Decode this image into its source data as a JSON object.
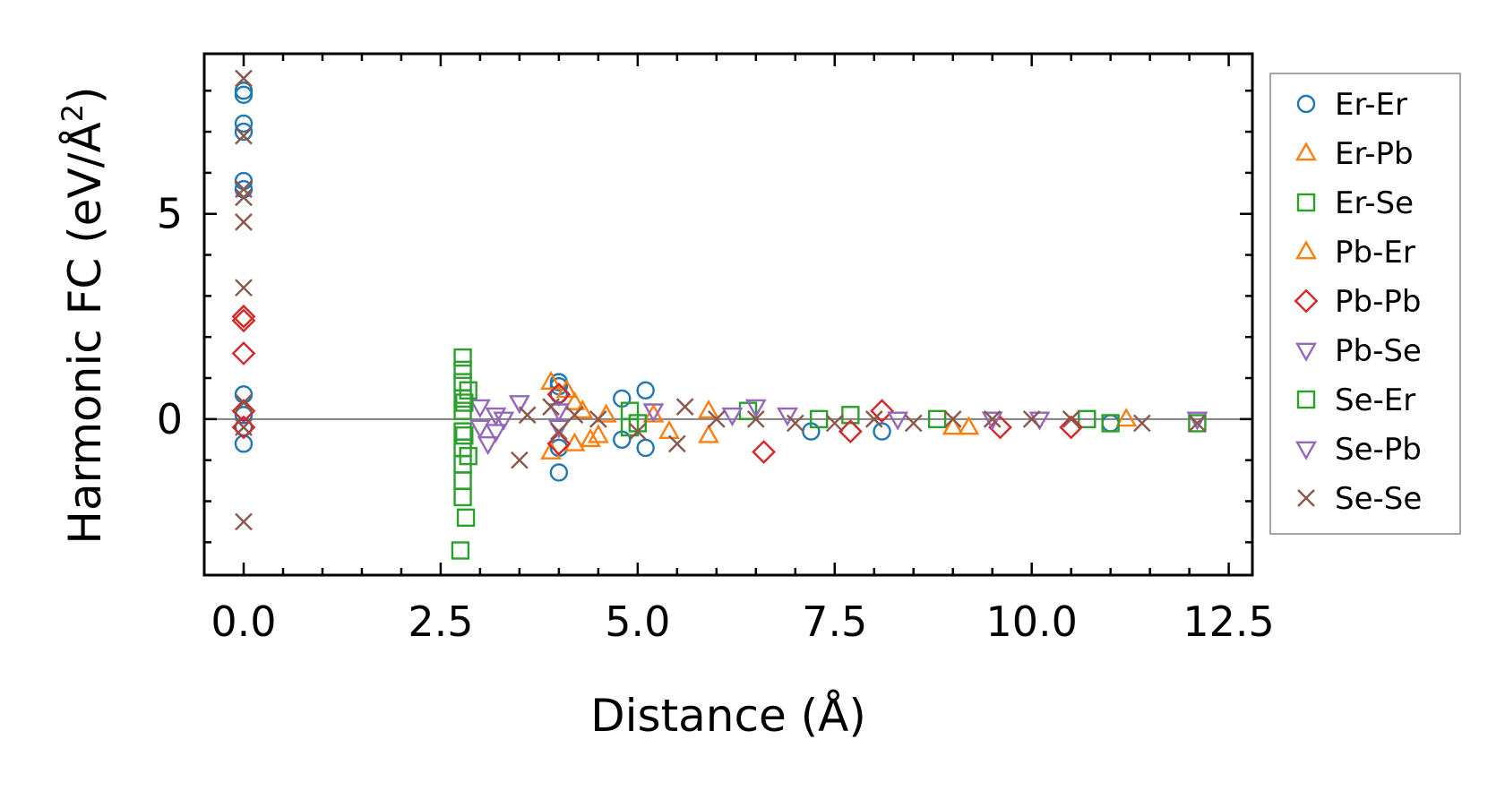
{
  "chart_data": {
    "type": "scatter",
    "xlabel": "Distance (Å)",
    "ylabel_main": "Harmonic FC (eV/Å",
    "ylabel_sup": "2",
    "ylabel_close": ")",
    "xlim": [
      -0.5,
      12.8
    ],
    "ylim": [
      -3.8,
      8.9
    ],
    "xticks": [
      0.0,
      2.5,
      5.0,
      7.5,
      10.0,
      12.5
    ],
    "xtick_labels": [
      "0.0",
      "2.5",
      "5.0",
      "7.5",
      "10.0",
      "12.5"
    ],
    "yticks": [
      0,
      5
    ],
    "ytick_labels": [
      "0",
      "5"
    ],
    "zero_line": true,
    "grid": false,
    "legend_position": "outside-right",
    "series": [
      {
        "name": "Er-Er",
        "marker": "circle",
        "color": "#1f77b4",
        "points": [
          [
            0,
            8.0
          ],
          [
            0,
            7.9
          ],
          [
            0,
            7.2
          ],
          [
            0,
            7.0
          ],
          [
            0,
            5.8
          ],
          [
            0,
            5.6
          ],
          [
            0,
            0.6
          ],
          [
            0,
            0.1
          ],
          [
            0,
            -0.2
          ],
          [
            0,
            -0.6
          ],
          [
            4.0,
            0.9
          ],
          [
            4.0,
            0.8
          ],
          [
            4.0,
            0.6
          ],
          [
            4.0,
            -0.7
          ],
          [
            4.0,
            -1.3
          ],
          [
            4.8,
            0.5
          ],
          [
            4.8,
            -0.5
          ],
          [
            5.1,
            0.7
          ],
          [
            5.1,
            -0.7
          ],
          [
            7.2,
            -0.3
          ],
          [
            8.1,
            -0.3
          ],
          [
            11.0,
            -0.1
          ]
        ]
      },
      {
        "name": "Er-Pb",
        "marker": "triangle-up",
        "color": "#ff7f0e",
        "points": [
          [
            3.9,
            0.9
          ],
          [
            4.1,
            0.7
          ],
          [
            4.2,
            0.4
          ],
          [
            4.3,
            0.2
          ],
          [
            4.4,
            -0.5
          ],
          [
            4.6,
            0.1
          ],
          [
            5.2,
            0.1
          ],
          [
            5.9,
            0.2
          ],
          [
            5.9,
            -0.4
          ],
          [
            9.0,
            -0.2
          ],
          [
            11.2,
            0.0
          ]
        ]
      },
      {
        "name": "Er-Se",
        "marker": "square",
        "color": "#2ca02c",
        "points": [
          [
            2.78,
            1.5
          ],
          [
            2.78,
            1.2
          ],
          [
            2.78,
            0.9
          ],
          [
            2.78,
            0.5
          ],
          [
            2.78,
            0.2
          ],
          [
            2.78,
            -0.3
          ],
          [
            2.78,
            -0.7
          ],
          [
            2.78,
            -1.1
          ],
          [
            2.78,
            -1.5
          ],
          [
            2.78,
            -1.9
          ],
          [
            2.82,
            -2.4
          ],
          [
            2.75,
            -3.2
          ],
          [
            2.85,
            0.7
          ],
          [
            2.85,
            -0.9
          ],
          [
            4.9,
            0.2
          ],
          [
            5.0,
            -0.1
          ],
          [
            6.4,
            0.2
          ],
          [
            7.7,
            0.1
          ],
          [
            10.7,
            0.0
          ],
          [
            12.1,
            -0.1
          ]
        ]
      },
      {
        "name": "Pb-Er",
        "marker": "triangle-up",
        "color": "#ff7f0e",
        "points": [
          [
            3.9,
            -0.8
          ],
          [
            4.2,
            -0.6
          ],
          [
            4.5,
            -0.4
          ],
          [
            5.4,
            -0.3
          ],
          [
            9.2,
            -0.2
          ]
        ]
      },
      {
        "name": "Pb-Pb",
        "marker": "diamond",
        "color": "#d62728",
        "points": [
          [
            0,
            2.5
          ],
          [
            0,
            2.4
          ],
          [
            0,
            1.6
          ],
          [
            0,
            0.2
          ],
          [
            0,
            -0.2
          ],
          [
            4.0,
            0.6
          ],
          [
            4.0,
            -0.6
          ],
          [
            6.6,
            -0.8
          ],
          [
            7.7,
            -0.3
          ],
          [
            8.1,
            0.2
          ],
          [
            9.6,
            -0.2
          ],
          [
            10.5,
            -0.2
          ]
        ]
      },
      {
        "name": "Pb-Se",
        "marker": "triangle-down",
        "color": "#9467bd",
        "points": [
          [
            3.0,
            0.3
          ],
          [
            3.1,
            -0.6
          ],
          [
            3.2,
            -0.3
          ],
          [
            3.3,
            0.0
          ],
          [
            3.5,
            0.4
          ],
          [
            4.0,
            0.2
          ],
          [
            5.2,
            0.2
          ],
          [
            6.2,
            0.1
          ],
          [
            6.9,
            0.1
          ],
          [
            8.3,
            0.0
          ],
          [
            9.5,
            0.0
          ],
          [
            12.1,
            0.0
          ]
        ]
      },
      {
        "name": "Se-Er",
        "marker": "square",
        "color": "#2ca02c",
        "points": [
          [
            2.8,
            0.4
          ],
          [
            2.8,
            -0.4
          ],
          [
            4.9,
            -0.2
          ],
          [
            7.3,
            0.0
          ],
          [
            8.8,
            0.0
          ],
          [
            11.0,
            -0.1
          ]
        ]
      },
      {
        "name": "Se-Pb",
        "marker": "triangle-down",
        "color": "#9467bd",
        "points": [
          [
            3.0,
            -0.2
          ],
          [
            3.2,
            0.1
          ],
          [
            4.0,
            -0.2
          ],
          [
            6.5,
            0.3
          ],
          [
            10.1,
            0.0
          ]
        ]
      },
      {
        "name": "Se-Se",
        "marker": "x",
        "color": "#8c564b",
        "points": [
          [
            0,
            8.3
          ],
          [
            0,
            6.9
          ],
          [
            0,
            5.6
          ],
          [
            0,
            5.4
          ],
          [
            0,
            4.8
          ],
          [
            0,
            3.2
          ],
          [
            0,
            0.4
          ],
          [
            0,
            -0.2
          ],
          [
            0,
            -2.5
          ],
          [
            3.5,
            -1.0
          ],
          [
            3.6,
            0.1
          ],
          [
            3.9,
            0.3
          ],
          [
            4.0,
            -0.3
          ],
          [
            4.2,
            0.1
          ],
          [
            4.5,
            0.0
          ],
          [
            5.0,
            -0.3
          ],
          [
            5.5,
            -0.6
          ],
          [
            5.6,
            0.3
          ],
          [
            6.0,
            0.0
          ],
          [
            6.5,
            0.0
          ],
          [
            7.0,
            -0.1
          ],
          [
            7.5,
            -0.1
          ],
          [
            8.0,
            0.0
          ],
          [
            8.5,
            -0.1
          ],
          [
            9.0,
            0.0
          ],
          [
            9.5,
            0.0
          ],
          [
            10.0,
            0.0
          ],
          [
            10.5,
            0.0
          ],
          [
            11.4,
            -0.1
          ],
          [
            12.1,
            -0.1
          ]
        ]
      }
    ]
  }
}
